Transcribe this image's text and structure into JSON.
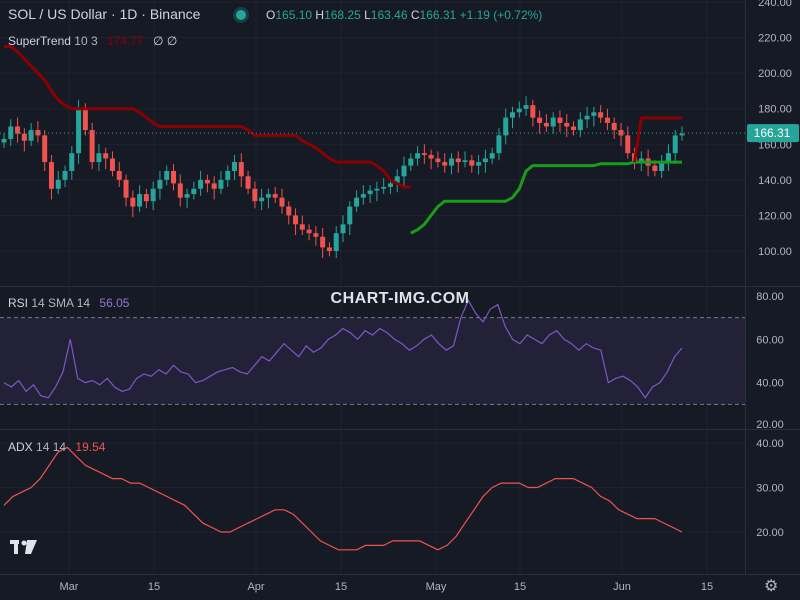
{
  "header": {
    "title": "SOL / US Dollar · 1D · Binance",
    "ohlc": {
      "o_label": "O",
      "o": "165.10",
      "h_label": "H",
      "h": "168.25",
      "l_label": "L",
      "l": "163.46",
      "c_label": "C",
      "c": "166.31",
      "change": "+1.19 (+0.72%)"
    }
  },
  "indicators": {
    "supertrend": {
      "name": "SuperTrend",
      "params": "10 3",
      "value": "174.77",
      "extra": "∅ ∅"
    },
    "rsi": {
      "name": "RSI",
      "params": "14 SMA 14",
      "value": "56.05"
    },
    "adx": {
      "name": "ADX",
      "params": "14 14",
      "value": "19.54"
    }
  },
  "watermark": "CHART-IMG.COM",
  "price_badge": "166.31",
  "colors": {
    "bg": "#161a25",
    "up": "#26a69a",
    "down": "#ef5350",
    "supertrend_down": "#8b0000",
    "supertrend_up": "#1a9c1a",
    "rsi_line": "#7e57c2",
    "rsi_band": "#2a2540",
    "adx_line": "#ef5350"
  },
  "chart_data": [
    {
      "type": "candlestick",
      "title": "SOL / US Dollar · 1D · Binance",
      "x_ticks": [
        "Mar",
        "15",
        "Apr",
        "15",
        "May",
        "15",
        "Jun",
        "15"
      ],
      "y_ticks": [
        100,
        120,
        140,
        160,
        180,
        200,
        220,
        240
      ],
      "ylim": [
        88,
        240
      ],
      "last_close": 166.31,
      "closes": [
        163,
        170,
        166,
        162,
        168,
        165,
        150,
        135,
        140,
        145,
        155,
        180,
        168,
        150,
        155,
        152,
        145,
        140,
        130,
        125,
        132,
        128,
        135,
        140,
        145,
        138,
        130,
        132,
        135,
        140,
        138,
        135,
        140,
        145,
        150,
        142,
        135,
        128,
        130,
        132,
        130,
        125,
        120,
        115,
        112,
        110,
        108,
        102,
        100,
        110,
        115,
        125,
        130,
        132,
        134,
        135,
        136,
        138,
        142,
        148,
        152,
        155,
        154,
        152,
        150,
        148,
        152,
        150,
        151,
        148,
        150,
        152,
        155,
        165,
        175,
        178,
        180,
        182,
        175,
        172,
        170,
        175,
        172,
        170,
        168,
        174,
        176,
        178,
        175,
        172,
        168,
        165,
        155,
        150,
        152,
        148,
        145,
        150,
        155,
        165,
        166
      ],
      "supertrend": [
        {
          "trend": "down",
          "from": 0,
          "to": 60,
          "values": [
            215,
            215,
            212,
            208,
            204,
            200,
            196,
            190,
            185,
            182,
            180,
            180,
            180,
            180,
            180,
            180,
            180,
            180,
            180,
            180,
            178,
            175,
            172,
            170,
            170,
            170,
            170,
            170,
            170,
            170,
            170,
            170,
            170,
            170,
            170,
            170,
            168,
            165,
            165,
            165,
            165,
            165,
            165,
            165,
            162,
            160,
            158,
            155,
            152,
            150,
            150,
            150,
            150,
            150,
            150,
            148,
            145,
            140,
            138,
            136,
            136
          ]
        },
        {
          "trend": "up",
          "from": 60,
          "to": 100,
          "values": [
            110,
            112,
            115,
            120,
            125,
            128,
            128,
            128,
            128,
            128,
            128,
            128,
            128,
            128,
            128,
            130,
            135,
            145,
            148,
            148,
            148,
            148,
            148,
            148,
            148,
            148,
            148,
            148,
            149,
            149,
            149,
            149,
            149,
            150,
            150,
            150,
            150,
            150,
            150,
            150,
            150
          ]
        },
        {
          "trend": "down",
          "from": 93,
          "to": 100,
          "values": [
            150,
            174.77,
            174.77,
            174.77,
            174.77,
            174.77,
            174.77,
            174.77
          ]
        }
      ]
    },
    {
      "type": "line",
      "name": "RSI 14 SMA 14",
      "y_ticks": [
        20,
        40,
        60,
        80
      ],
      "ylim": [
        20,
        80
      ],
      "upper_band": 70,
      "lower_band": 30,
      "values": [
        40,
        38,
        41,
        36,
        39,
        34,
        33,
        38,
        45,
        60,
        42,
        40,
        41,
        39,
        42,
        38,
        36,
        37,
        42,
        44,
        43,
        46,
        44,
        48,
        45,
        44,
        40,
        41,
        43,
        45,
        46,
        47,
        45,
        44,
        48,
        52,
        50,
        54,
        58,
        55,
        52,
        57,
        54,
        56,
        60,
        62,
        65,
        63,
        60,
        64,
        62,
        65,
        63,
        60,
        58,
        55,
        57,
        60,
        62,
        58,
        55,
        57,
        70,
        78,
        72,
        68,
        74,
        76,
        66,
        60,
        58,
        62,
        60,
        58,
        62,
        64,
        60,
        58,
        55,
        58,
        56,
        55,
        40,
        42,
        43,
        41,
        38,
        33,
        38,
        40,
        45,
        52,
        56
      ]
    },
    {
      "type": "line",
      "name": "ADX 14 14",
      "y_ticks": [
        20,
        30,
        40
      ],
      "ylim": [
        13,
        41
      ],
      "values": [
        26,
        28,
        29,
        30,
        32,
        35,
        38,
        39,
        37,
        35,
        34,
        33,
        32,
        32,
        31,
        31,
        30,
        29,
        28,
        27,
        26,
        24,
        22,
        21,
        20,
        20,
        21,
        22,
        23,
        24,
        25,
        25,
        24,
        22,
        20,
        18,
        17,
        16,
        16,
        16,
        17,
        17,
        17,
        18,
        18,
        18,
        18,
        17,
        16,
        17,
        19,
        22,
        25,
        28,
        30,
        31,
        31,
        31,
        30,
        30,
        31,
        32,
        32,
        32,
        31,
        30,
        28,
        27,
        25,
        24,
        23,
        23,
        23,
        22,
        21,
        20
      ]
    }
  ]
}
